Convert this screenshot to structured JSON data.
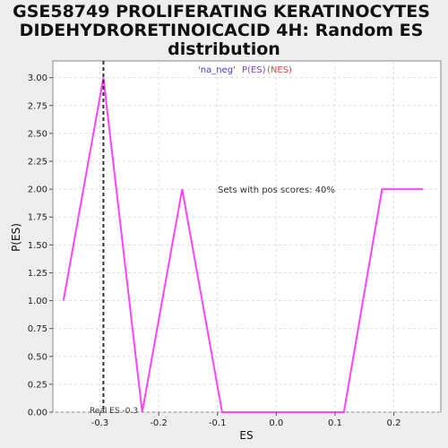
{
  "chart_data": {
    "type": "line",
    "title_lines": [
      "GSE58749 PROLIFERATING KERATINOCYTES",
      "DIDEHYDRORETINOICACID 4H: Random ES",
      "distribution"
    ],
    "xlabel": "ES",
    "ylabel": "P(ES)",
    "xlim": [
      -0.38,
      0.28
    ],
    "ylim": [
      0,
      3.15
    ],
    "x_ticks": [
      -0.3,
      -0.2,
      -0.1,
      0.0,
      0.1,
      0.2
    ],
    "x_tick_labels": [
      "-0.3",
      "-0.2",
      "-0.1",
      "0.0",
      "0.1",
      "0.2"
    ],
    "y_ticks": [
      0,
      0.25,
      0.5,
      0.75,
      1.0,
      1.25,
      1.5,
      1.75,
      2.0,
      2.25,
      2.5,
      2.75,
      3.0
    ],
    "y_tick_labels": [
      "0.00",
      "0.25",
      "0.50",
      "0.75",
      "1.00",
      "1.25",
      "1.50",
      "1.75",
      "2.00",
      "2.25",
      "2.50",
      "2.75",
      "3.00"
    ],
    "grid": true,
    "series": [
      {
        "color": "#ff44ff",
        "points": [
          [
            -0.362,
            1.0
          ],
          [
            -0.294,
            3.0
          ],
          [
            -0.228,
            0.0
          ],
          [
            -0.16,
            2.0
          ],
          [
            -0.092,
            0.0
          ],
          [
            0.115,
            0.0
          ],
          [
            0.18,
            2.0
          ],
          [
            0.25,
            2.0
          ]
        ]
      }
    ],
    "real_es": {
      "x": -0.294,
      "label": "Real ES -0.3",
      "color": "#333333"
    },
    "annotations": {
      "pos_scores": "Sets with pos scores: 40%",
      "legend_na": "'na_neg'",
      "legend_pes": "P(ES)",
      "legend_nes": "(NES)",
      "legend_color_na": "#5533cc",
      "legend_color_pes": "#7744cc",
      "legend_color_nes": "#dd4444"
    },
    "colors": {
      "background": "#eeeeee",
      "plot_bg": "#ffffff",
      "grid": "#dddddd"
    }
  }
}
